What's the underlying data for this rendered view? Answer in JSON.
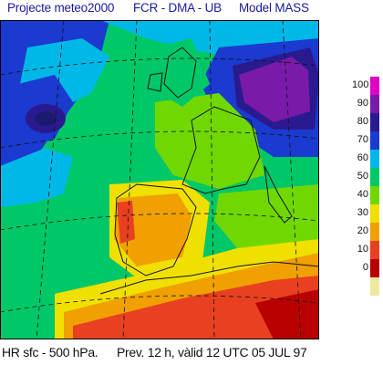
{
  "header": {
    "project": "Projecte meteo2000",
    "institution": "FCR - DMA - UB",
    "model": "Model MASS"
  },
  "footer": {
    "field": "HR sfc - 500 hPa.",
    "forecast": "Prev. 12 h, vàlid 12 UTC 05 JUL 97"
  },
  "legend": {
    "labels": [
      "100",
      "90",
      "80",
      "70",
      "60",
      "50",
      "40",
      "30",
      "20",
      "10",
      "0"
    ],
    "colors": [
      "#e000c8",
      "#7a1aa8",
      "#2a1a90",
      "#1a3ad0",
      "#00b8e8",
      "#00c868",
      "#70d800",
      "#f0e000",
      "#f0a000",
      "#e84020",
      "#b80000",
      "#f0e8a0"
    ]
  }
}
